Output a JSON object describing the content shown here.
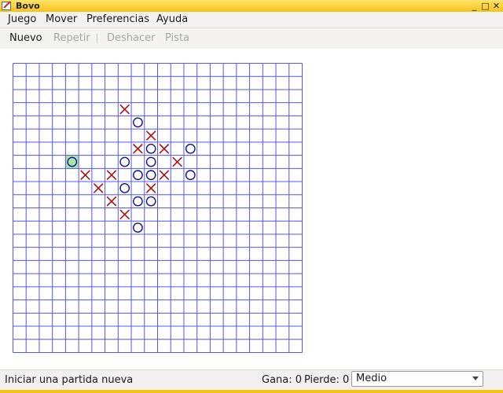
{
  "window": {
    "title": "Bovo"
  },
  "menubar": {
    "items": [
      "Juego",
      "Mover",
      "Preferencias",
      "Ayuda"
    ]
  },
  "toolbar": {
    "nuevo": "Nuevo",
    "repetir": "Repetir",
    "deshacer": "Deshacer",
    "pista": "Pista"
  },
  "board": {
    "columns": 22,
    "rows": 22,
    "pieces": [
      {
        "row": 3,
        "col": 8,
        "mark": "X"
      },
      {
        "row": 4,
        "col": 9,
        "mark": "O"
      },
      {
        "row": 5,
        "col": 10,
        "mark": "X"
      },
      {
        "row": 6,
        "col": 9,
        "mark": "X"
      },
      {
        "row": 6,
        "col": 10,
        "mark": "O"
      },
      {
        "row": 6,
        "col": 11,
        "mark": "X"
      },
      {
        "row": 6,
        "col": 13,
        "mark": "O"
      },
      {
        "row": 7,
        "col": 4,
        "mark": "O",
        "highlight": true
      },
      {
        "row": 7,
        "col": 8,
        "mark": "O"
      },
      {
        "row": 7,
        "col": 10,
        "mark": "O"
      },
      {
        "row": 7,
        "col": 12,
        "mark": "X"
      },
      {
        "row": 8,
        "col": 5,
        "mark": "X"
      },
      {
        "row": 8,
        "col": 7,
        "mark": "X"
      },
      {
        "row": 8,
        "col": 9,
        "mark": "O"
      },
      {
        "row": 8,
        "col": 10,
        "mark": "O"
      },
      {
        "row": 8,
        "col": 11,
        "mark": "X"
      },
      {
        "row": 8,
        "col": 13,
        "mark": "O"
      },
      {
        "row": 9,
        "col": 6,
        "mark": "X"
      },
      {
        "row": 9,
        "col": 8,
        "mark": "O"
      },
      {
        "row": 9,
        "col": 10,
        "mark": "X"
      },
      {
        "row": 10,
        "col": 7,
        "mark": "X"
      },
      {
        "row": 10,
        "col": 9,
        "mark": "O"
      },
      {
        "row": 10,
        "col": 10,
        "mark": "O"
      },
      {
        "row": 11,
        "col": 8,
        "mark": "X"
      },
      {
        "row": 12,
        "col": 9,
        "mark": "O"
      }
    ],
    "colors": {
      "grid": "#5555ee",
      "x": "#aa1111",
      "o": "#111199",
      "highlight": "#a8e6a8"
    }
  },
  "status": {
    "message": "Iniciar una partida nueva",
    "gana": "Gana: 0",
    "pierde": "Pierde: 0",
    "difficulty": "Medio"
  }
}
